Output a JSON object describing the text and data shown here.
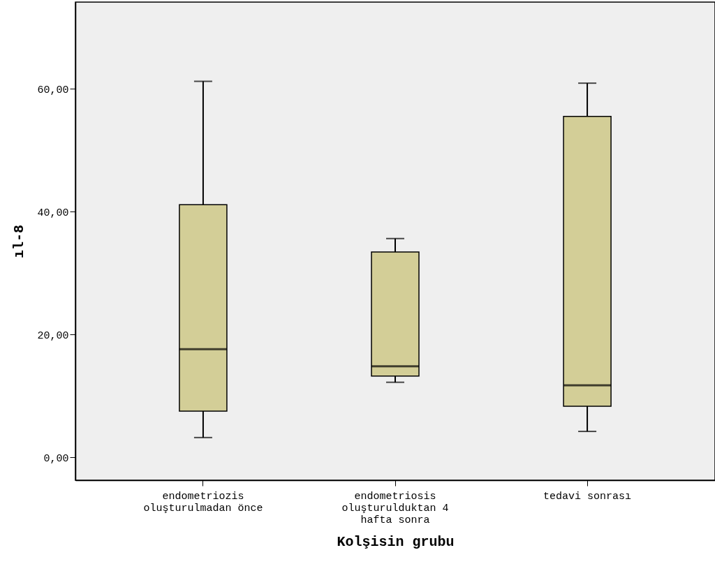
{
  "chart_data": {
    "type": "box",
    "xlabel": "Kolşisin grubu",
    "ylabel": "ıl-8",
    "categories": [
      "endometriozis oluşturulmadan önce",
      "endometriosis oluşturulduktan 4 hafta sonra",
      "tedavi sonrası"
    ],
    "color": "#d3ce97",
    "boxes": [
      {
        "low": 3.2,
        "q1": 7.5,
        "median": 17.6,
        "q3": 41.1,
        "high": 61.2
      },
      {
        "low": 12.2,
        "q1": 13.2,
        "median": 14.8,
        "q3": 33.4,
        "high": 35.6
      },
      {
        "low": 4.2,
        "q1": 8.3,
        "median": 11.7,
        "q3": 55.5,
        "high": 60.9
      }
    ],
    "ylim": [
      -3.75,
      74.1
    ],
    "yticks": [
      {
        "value": 0,
        "label": "0,00"
      },
      {
        "value": 20,
        "label": "20,00"
      },
      {
        "value": 40,
        "label": "40,00"
      },
      {
        "value": 60,
        "label": "60,00"
      }
    ],
    "grid": false
  }
}
